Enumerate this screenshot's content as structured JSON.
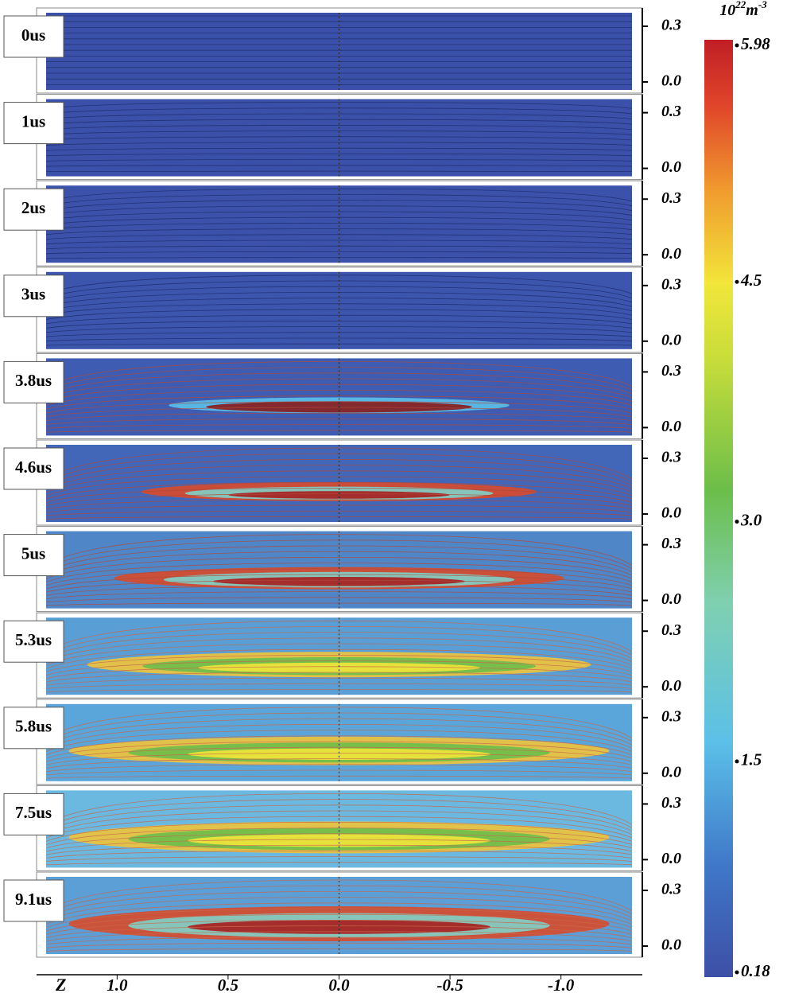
{
  "chart_data": {
    "type": "contour",
    "panels": [
      "0us",
      "1us",
      "2us",
      "3us",
      "3.8us",
      "4.6us",
      "5us",
      "5.3us",
      "5.8us",
      "7.5us",
      "9.1us"
    ],
    "xlabel": "Z",
    "xlim": [
      1.32,
      -1.32
    ],
    "xticks": [
      {
        "value": 1,
        "label": "1.0"
      },
      0.5,
      {
        "value": 0,
        "label": "0.0"
      },
      -0.5,
      {
        "value": -1,
        "label": "-1.0"
      }
    ],
    "ylim": [
      -0.043,
      0.373
    ],
    "yticks": [
      {
        "value": 0,
        "label": "0.0"
      },
      0.3
    ],
    "colorbar": {
      "unit_base": "10",
      "unit_base_exp": "22",
      "unit": "m",
      "unit_exp": "-3",
      "clim": [
        0.18,
        5.98
      ],
      "ticks": [
        5.98,
        4.5,
        {
          "value": 3,
          "label": "3.0"
        },
        1.5,
        0.18
      ]
    }
  }
}
